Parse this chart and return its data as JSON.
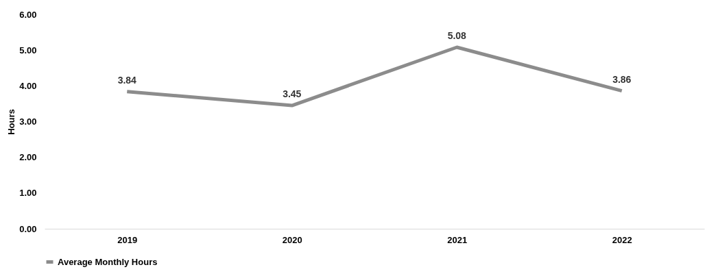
{
  "chart_data": {
    "type": "line",
    "ylabel": "Hours",
    "categories": [
      "2019",
      "2020",
      "2021",
      "2022"
    ],
    "series": [
      {
        "name": "Average Monthly Hours",
        "color": "#8c8c8c",
        "values": [
          3.84,
          3.45,
          5.08,
          3.86
        ]
      }
    ],
    "ylim": [
      0,
      6
    ],
    "yticks": [
      {
        "value": 0,
        "label": "0.00"
      },
      {
        "value": 1,
        "label": "1.00"
      },
      {
        "value": 2,
        "label": "2.00"
      },
      {
        "value": 3,
        "label": "3.00"
      },
      {
        "value": 4,
        "label": "4.00"
      },
      {
        "value": 5,
        "label": "5.00"
      },
      {
        "value": 6,
        "label": "6.00"
      }
    ],
    "data_labels": true,
    "legend": "bottom",
    "grid": false,
    "marker": "none",
    "line_style": "solid"
  }
}
